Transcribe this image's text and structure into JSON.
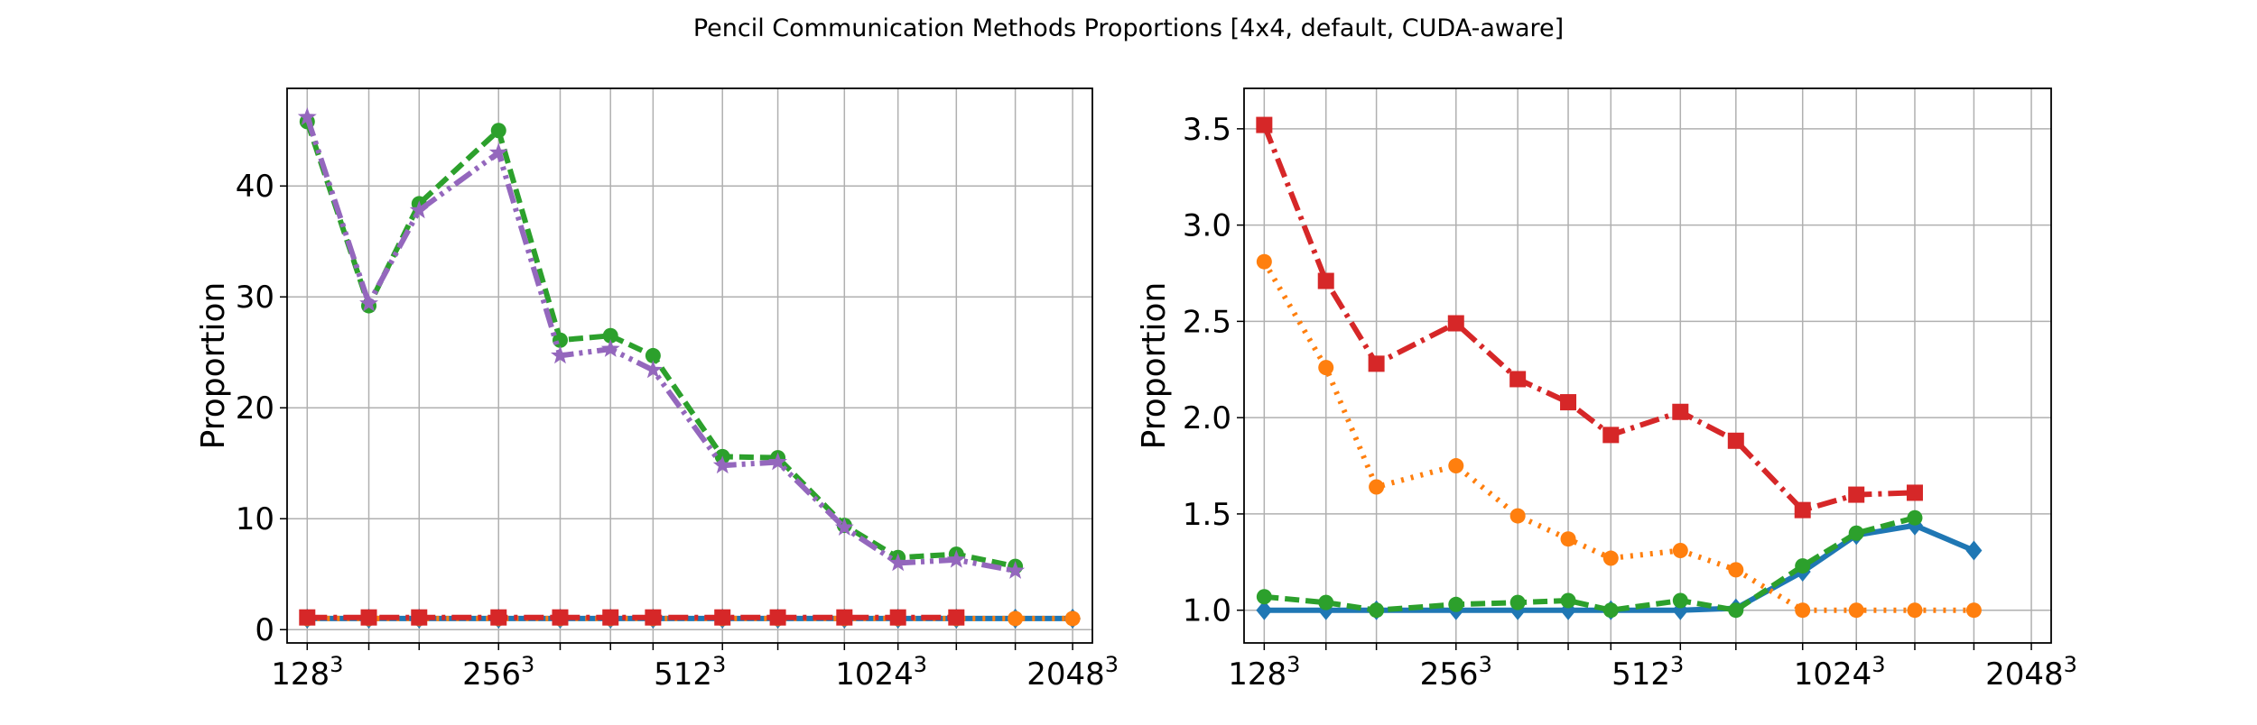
{
  "figure": {
    "title": "Pencil Communication Methods Proportions [4x4, default, CUDA-aware]"
  },
  "chart_data": [
    {
      "type": "line",
      "title": "",
      "xlabel": "",
      "ylabel": "Proportion",
      "x_scale": "log2",
      "x_ticks": [
        {
          "value": 128,
          "base": "128",
          "exp": "3"
        },
        {
          "value": 256,
          "base": "256",
          "exp": "3"
        },
        {
          "value": 512,
          "base": "512",
          "exp": "3"
        },
        {
          "value": 1024,
          "base": "1024",
          "exp": "3"
        },
        {
          "value": 2048,
          "base": "2048",
          "exp": "3"
        }
      ],
      "x": [
        128,
        160,
        192,
        256,
        320,
        384,
        448,
        576,
        704,
        896,
        1088,
        1344,
        1664,
        2048
      ],
      "xlim": [
        119,
        2200
      ],
      "ylim": [
        -1.2,
        48.8
      ],
      "y_ticks": [
        0,
        10,
        20,
        30,
        40
      ],
      "grid": true,
      "series": [
        {
          "color": "#1f77b4",
          "dash": "solid",
          "marker": "diamond",
          "values": [
            1.0,
            1.0,
            1.0,
            1.0,
            1.0,
            1.0,
            1.0,
            1.0,
            1.0,
            1.0,
            1.0,
            1.0,
            1.0,
            1.0
          ]
        },
        {
          "color": "#ff7f0e",
          "dash": "dotted",
          "marker": "circle",
          "values": [
            1.0,
            1.0,
            1.0,
            1.0,
            1.0,
            1.0,
            1.0,
            1.0,
            1.0,
            1.0,
            1.0,
            1.0,
            1.0,
            1.0
          ]
        },
        {
          "color": "#2ca02c",
          "dash": "dashed",
          "marker": "circle",
          "values": [
            45.8,
            29.2,
            38.4,
            45.0,
            26.1,
            26.5,
            24.7,
            15.6,
            15.5,
            9.4,
            6.5,
            6.8,
            5.7,
            null
          ]
        },
        {
          "color": "#d62728",
          "dash": "dashdot",
          "marker": "square",
          "values": [
            1.1,
            1.1,
            1.1,
            1.1,
            1.1,
            1.1,
            1.1,
            1.1,
            1.1,
            1.1,
            1.1,
            1.1,
            null,
            null
          ]
        },
        {
          "color": "#9467bd",
          "dash": "dashdotdot",
          "marker": "star",
          "values": [
            46.2,
            29.4,
            37.8,
            43.0,
            24.7,
            25.3,
            23.4,
            14.8,
            15.1,
            9.2,
            6.0,
            6.3,
            5.3,
            null
          ]
        }
      ]
    },
    {
      "type": "line",
      "title": "",
      "xlabel": "",
      "ylabel": "Proportion",
      "x_scale": "log2",
      "x_ticks": [
        {
          "value": 128,
          "base": "128",
          "exp": "3"
        },
        {
          "value": 256,
          "base": "256",
          "exp": "3"
        },
        {
          "value": 512,
          "base": "512",
          "exp": "3"
        },
        {
          "value": 1024,
          "base": "1024",
          "exp": "3"
        },
        {
          "value": 2048,
          "base": "2048",
          "exp": "3"
        }
      ],
      "x": [
        128,
        160,
        192,
        256,
        320,
        384,
        448,
        576,
        704,
        896,
        1088,
        1344,
        1664,
        2048
      ],
      "xlim": [
        119,
        2200
      ],
      "ylim": [
        0.83,
        3.71
      ],
      "y_ticks": [
        1.0,
        1.5,
        2.0,
        2.5,
        3.0,
        3.5
      ],
      "grid": true,
      "series": [
        {
          "color": "#1f77b4",
          "dash": "solid",
          "marker": "diamond",
          "values": [
            1.0,
            1.0,
            1.0,
            1.0,
            1.0,
            1.0,
            1.0,
            1.0,
            1.01,
            1.2,
            1.39,
            1.44,
            1.31,
            null
          ]
        },
        {
          "color": "#ff7f0e",
          "dash": "dotted",
          "marker": "circle",
          "values": [
            2.81,
            2.26,
            1.64,
            1.75,
            1.49,
            1.37,
            1.27,
            1.31,
            1.21,
            1.0,
            1.0,
            1.0,
            1.0,
            null
          ]
        },
        {
          "color": "#2ca02c",
          "dash": "dashed",
          "marker": "circle",
          "values": [
            1.07,
            1.04,
            1.0,
            1.03,
            1.04,
            1.05,
            1.0,
            1.05,
            1.0,
            1.23,
            1.4,
            1.48,
            null,
            null
          ]
        },
        {
          "color": "#d62728",
          "dash": "dashdot",
          "marker": "square",
          "values": [
            3.52,
            2.71,
            2.28,
            2.49,
            2.2,
            2.08,
            1.91,
            2.03,
            1.88,
            1.52,
            1.6,
            1.61,
            null,
            null
          ]
        }
      ]
    }
  ]
}
